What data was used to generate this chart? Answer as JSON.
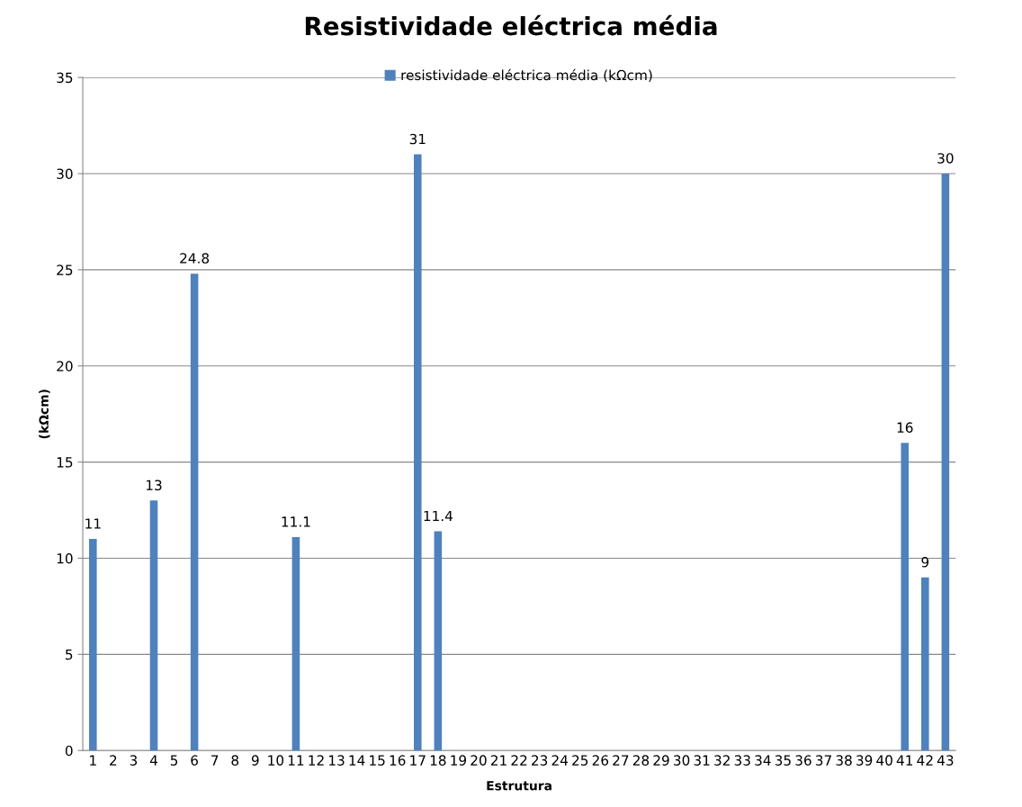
{
  "chart_data": {
    "type": "bar",
    "title": "Resistividade eléctrica média",
    "xlabel": "Estrutura",
    "ylabel": "(kΩcm)",
    "categories": [
      "1",
      "2",
      "3",
      "4",
      "5",
      "6",
      "7",
      "8",
      "9",
      "10",
      "11",
      "12",
      "13",
      "14",
      "15",
      "16",
      "17",
      "18",
      "19",
      "20",
      "21",
      "22",
      "23",
      "24",
      "25",
      "26",
      "27",
      "28",
      "29",
      "30",
      "31",
      "32",
      "33",
      "34",
      "35",
      "36",
      "37",
      "38",
      "39",
      "40",
      "41",
      "42",
      "43"
    ],
    "series": [
      {
        "name": "resistividade eléctrica média (kΩcm)",
        "color": "#4f81bd",
        "values": [
          11,
          null,
          null,
          13,
          null,
          24.8,
          null,
          null,
          null,
          null,
          11.1,
          null,
          null,
          null,
          null,
          null,
          31,
          11.4,
          null,
          null,
          null,
          null,
          null,
          null,
          null,
          null,
          null,
          null,
          null,
          null,
          null,
          null,
          null,
          null,
          null,
          null,
          null,
          null,
          null,
          null,
          16,
          9,
          30
        ]
      }
    ],
    "ylim": [
      0,
      35
    ],
    "yticks": [
      0,
      5,
      10,
      15,
      20,
      25,
      30,
      35
    ],
    "grid": "y",
    "legend": "top",
    "data_labels": true
  }
}
